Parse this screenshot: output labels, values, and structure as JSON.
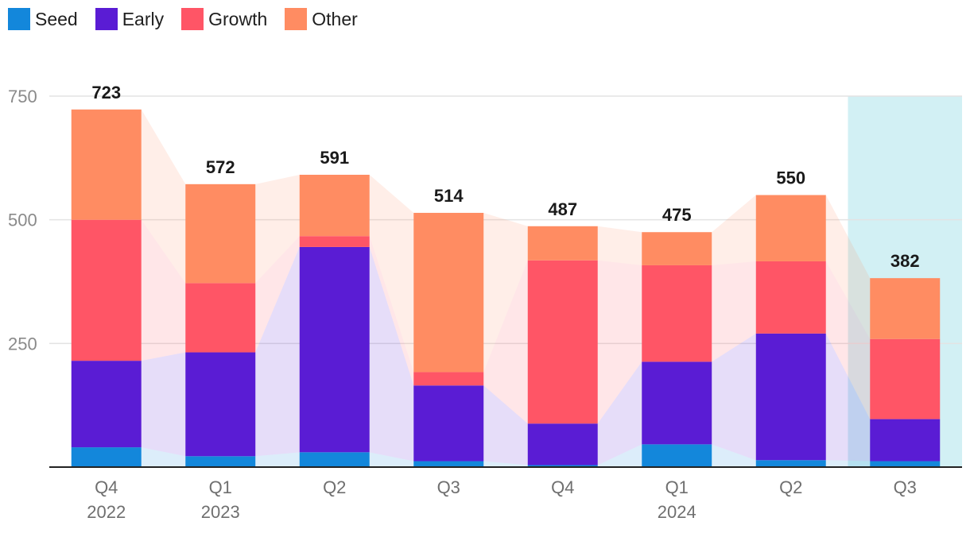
{
  "chart_data": {
    "type": "bar",
    "stacked": true,
    "categories": [
      "Q4 2022",
      "Q1 2023",
      "Q2",
      "Q3",
      "Q4",
      "Q1 2024",
      "Q2",
      "Q3"
    ],
    "x_tick_lines": [
      [
        "Q4",
        "2022"
      ],
      [
        "Q1",
        "2023"
      ],
      [
        "Q2"
      ],
      [
        "Q3"
      ],
      [
        "Q4"
      ],
      [
        "Q1",
        "2024"
      ],
      [
        "Q2"
      ],
      [
        "Q3"
      ]
    ],
    "series": [
      {
        "name": "Seed",
        "color": "#1387db",
        "values": [
          40,
          22,
          30,
          12,
          4,
          46,
          14,
          12
        ]
      },
      {
        "name": "Early",
        "color": "#5a1cd4",
        "values": [
          175,
          210,
          415,
          153,
          84,
          167,
          256,
          85
        ]
      },
      {
        "name": "Growth",
        "color": "#ff5566",
        "values": [
          285,
          140,
          22,
          27,
          330,
          195,
          146,
          162
        ]
      },
      {
        "name": "Other",
        "color": "#ff8c62",
        "values": [
          223,
          200,
          124,
          322,
          69,
          67,
          134,
          123
        ]
      }
    ],
    "totals": [
      723,
      572,
      591,
      514,
      487,
      475,
      550,
      382
    ],
    "yticks": [
      250,
      500,
      750
    ],
    "ylim": [
      0,
      750
    ],
    "highlight_category": 7,
    "highlight_color": "#d2f0f4",
    "title": "",
    "xlabel": "",
    "ylabel": ""
  }
}
